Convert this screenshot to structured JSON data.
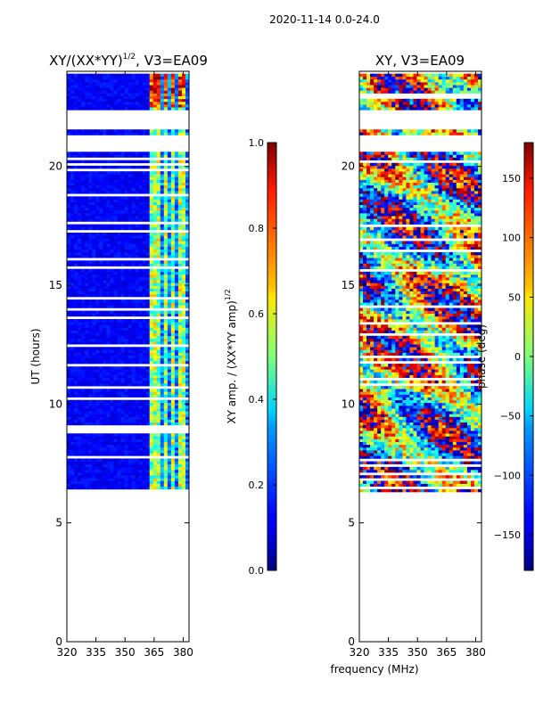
{
  "header": {
    "date_range": "2020-11-14 0.0-24.0"
  },
  "chart_data": [
    {
      "type": "heatmap",
      "title": "XY/(XX*YY)",
      "title_exp": "1/2",
      "title_suffix": ", V3=EA09",
      "xlabel": "",
      "ylabel": "UT (hours)",
      "xlim": [
        320,
        383
      ],
      "ylim": [
        0,
        24
      ],
      "xticks": [
        "320",
        "335",
        "350",
        "365",
        "380"
      ],
      "yticks": [
        "0",
        "5",
        "10",
        "15",
        "20"
      ],
      "data_hours": [
        6.3,
        23.9
      ],
      "gap_hours": [
        [
          21.6,
          22.4
        ],
        [
          20.6,
          21.3
        ]
      ],
      "strong_channels_mhz": [
        364,
        367,
        371,
        375,
        379
      ],
      "colorbar": {
        "label": "XY amp. / (XX*YY amp)",
        "label_exp": "1/2",
        "range": [
          0.0,
          1.0
        ],
        "ticks": [
          "0.0",
          "0.2",
          "0.4",
          "0.6",
          "0.8",
          "1.0"
        ],
        "colormap": "jet"
      }
    },
    {
      "type": "heatmap",
      "title": "XY, V3=EA09",
      "xlabel": "frequency (MHz)",
      "ylabel": "",
      "xlim": [
        320,
        383
      ],
      "ylim": [
        0,
        24
      ],
      "xticks": [
        "320",
        "335",
        "350",
        "365",
        "380"
      ],
      "yticks": [
        "0",
        "5",
        "10",
        "15",
        "20"
      ],
      "data_hours": [
        6.3,
        23.9
      ],
      "gap_hours": [
        [
          21.6,
          22.4
        ],
        [
          20.6,
          21.3
        ]
      ],
      "colorbar": {
        "label": "phase (deg)",
        "range": [
          -180,
          180
        ],
        "ticks": [
          "−150",
          "−100",
          "−50",
          "0",
          "50",
          "100",
          "150"
        ],
        "tick_values": [
          -150,
          -100,
          -50,
          0,
          50,
          100,
          150
        ],
        "colormap": "jet"
      }
    }
  ]
}
